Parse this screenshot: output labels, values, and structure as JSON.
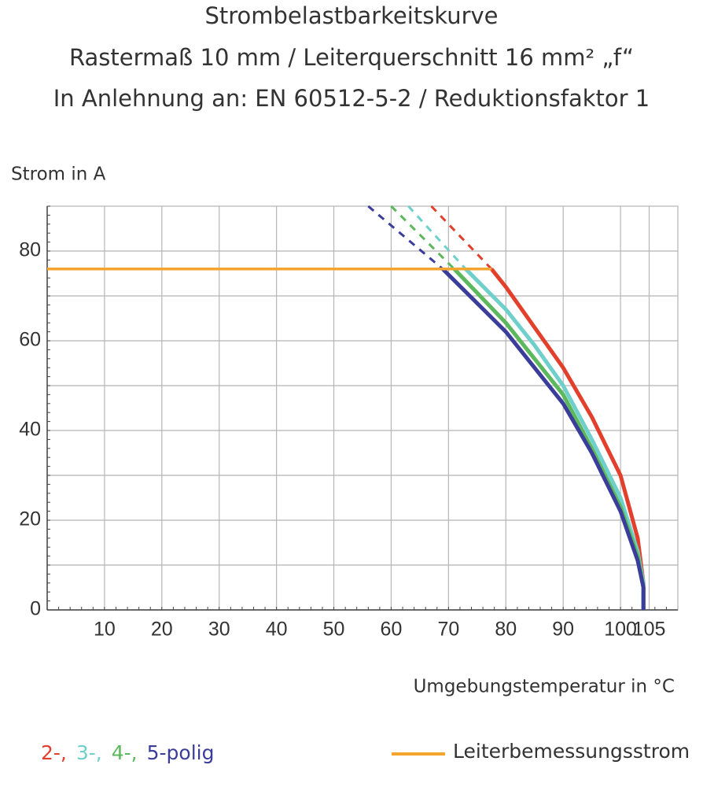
{
  "chart_data": {
    "type": "line",
    "title": "Strombelastbarkeitskurve",
    "subtitle": "Rastermaß 10 mm / Leiterquerschnitt 16 mm² „f“",
    "subtitle2": "In Anlehnung an: EN 60512-5-2 / Reduktionsfaktor 1",
    "ylabel": "Strom in A",
    "xlabel": "Umgebungstemperatur in °C",
    "xlim": [
      0,
      110
    ],
    "xticks": [
      10,
      20,
      30,
      40,
      50,
      60,
      70,
      80,
      90,
      100,
      105
    ],
    "ylim": [
      0,
      90
    ],
    "yticks": [
      0,
      20,
      40,
      60,
      80
    ],
    "grid": true,
    "series": [
      {
        "name": "2-,",
        "color": "#e2402c",
        "x": [
          77.5,
          80,
          85,
          90,
          95,
          100,
          103,
          104,
          104
        ],
        "values": [
          76,
          72,
          63,
          54,
          43,
          30,
          16,
          6,
          0
        ],
        "dashed": {
          "x": [
            67,
            77.5
          ],
          "values": [
            90,
            76
          ]
        }
      },
      {
        "name": "3-,",
        "color": "#6fcfcb",
        "x": [
          73,
          80,
          85,
          90,
          95,
          100,
          103,
          104,
          104
        ],
        "values": [
          76,
          67,
          59,
          50,
          38,
          25,
          13,
          6,
          0
        ],
        "dashed": {
          "x": [
            63,
            73
          ],
          "values": [
            90,
            76
          ]
        }
      },
      {
        "name": "4-,",
        "color": "#5cb85c",
        "x": [
          71,
          80,
          85,
          90,
          95,
          100,
          103,
          104,
          104
        ],
        "values": [
          76,
          64,
          56,
          48,
          36,
          23,
          12,
          5,
          0
        ],
        "dashed": {
          "x": [
            60,
            71
          ],
          "values": [
            90,
            76
          ]
        }
      },
      {
        "name": "5-polig",
        "color": "#3a3d9a",
        "x": [
          69,
          80,
          85,
          90,
          95,
          100,
          103,
          104,
          104
        ],
        "values": [
          76,
          62,
          54,
          46,
          35,
          22,
          11,
          5,
          0
        ],
        "dashed": {
          "x": [
            56,
            69
          ],
          "values": [
            90,
            76
          ]
        }
      },
      {
        "name": "Leiterbemessungsstrom",
        "color": "#f4a52f",
        "x": [
          0,
          77.5
        ],
        "values": [
          76,
          76
        ]
      }
    ]
  }
}
